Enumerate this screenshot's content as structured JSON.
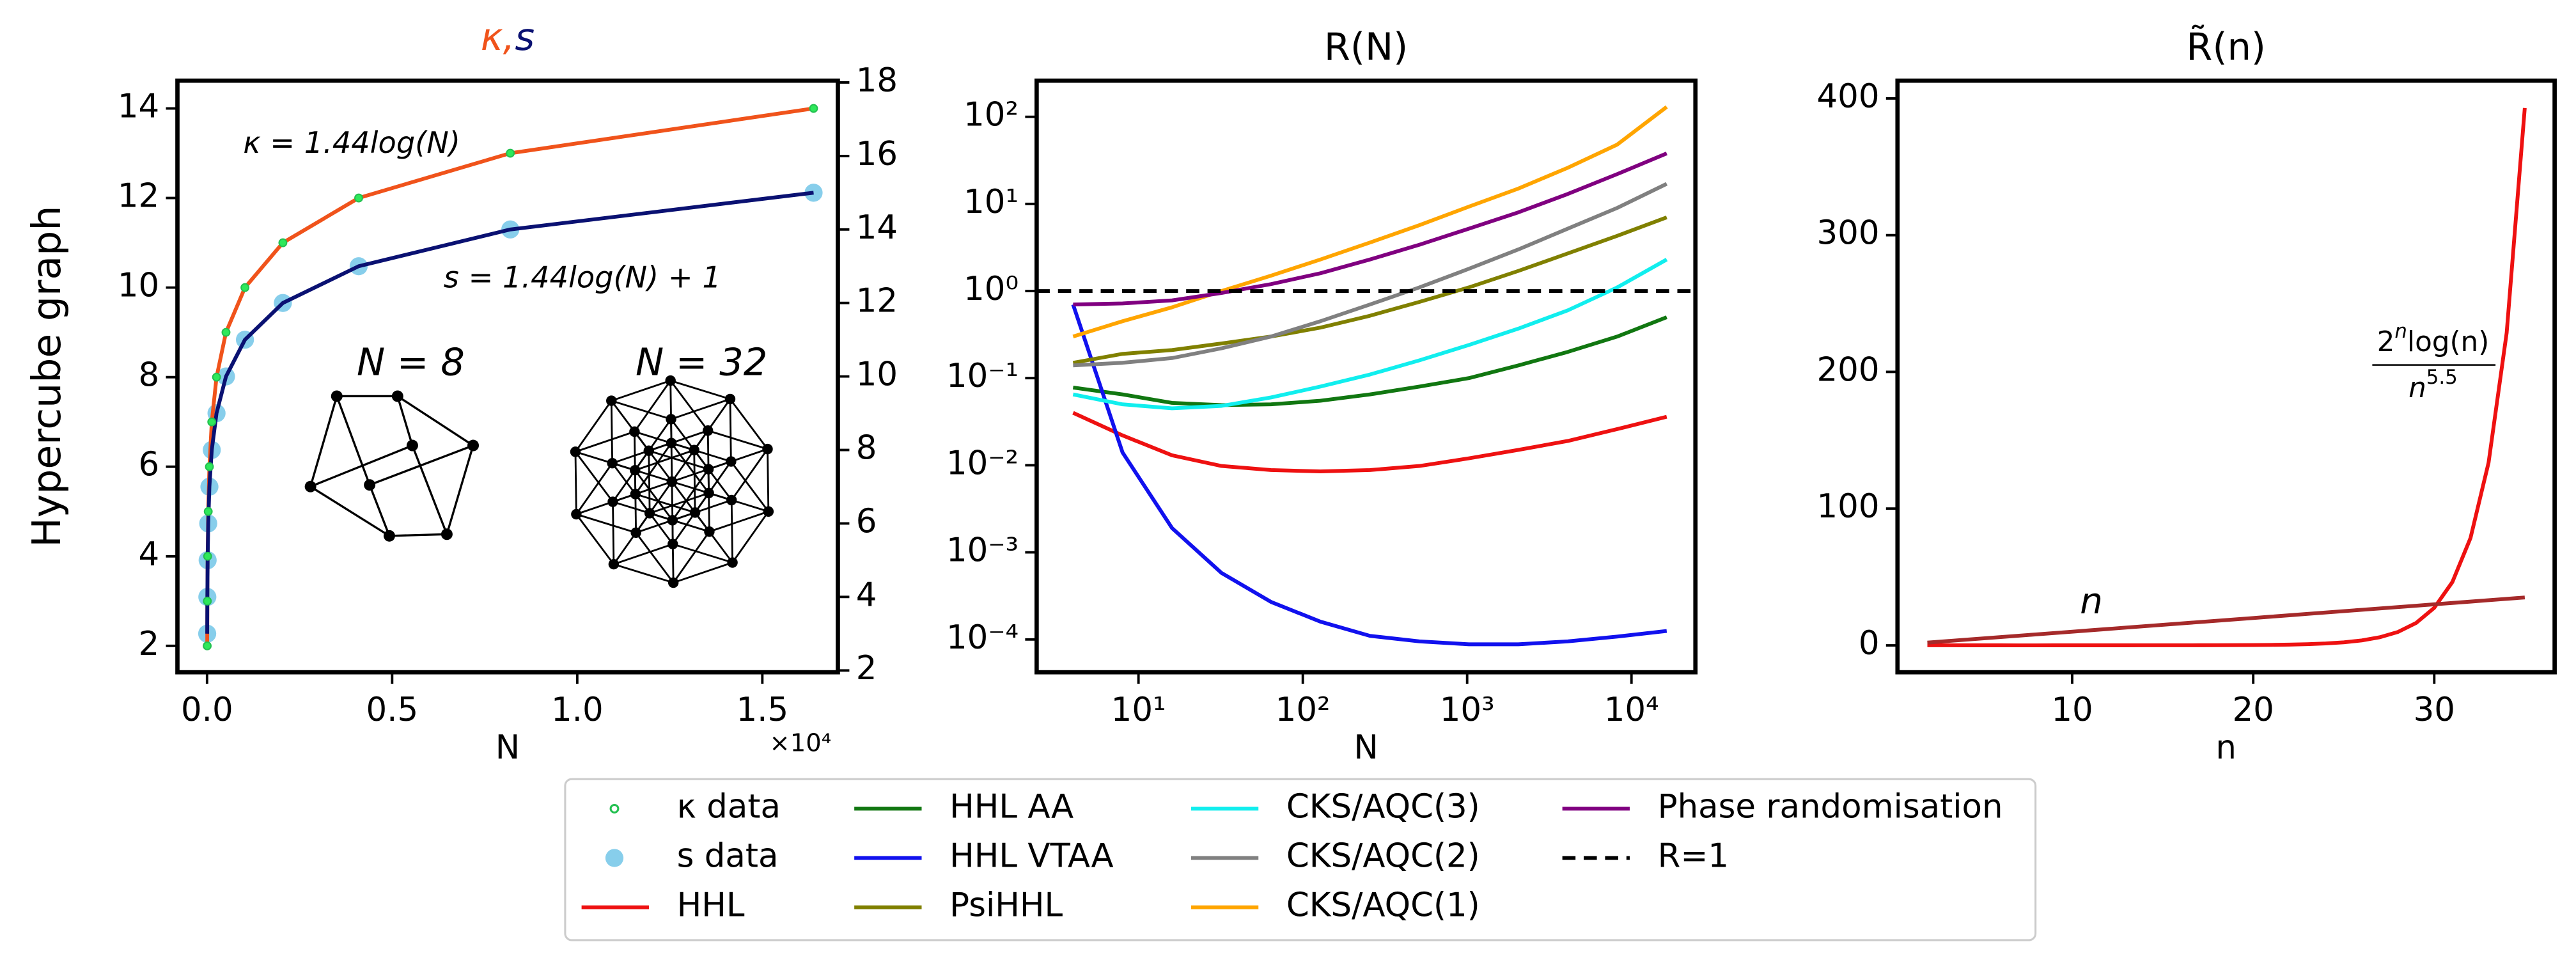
{
  "chart_data": [
    {
      "type": "line",
      "title_parts": [
        {
          "text": "κ",
          "color": "#f0531b"
        },
        {
          "text": ",",
          "color": "#f0531b"
        },
        {
          "text": "s",
          "color": "#0a1172"
        }
      ],
      "xlabel": "N",
      "ylabel": "Hypercube graph",
      "x_offset_label": "×10⁴",
      "x": [
        4,
        8,
        16,
        32,
        64,
        128,
        256,
        512,
        1024,
        2048,
        4096,
        8192,
        16384
      ],
      "series": [
        {
          "name": "κ data",
          "color": "#2ee85a",
          "marker": "small-circle",
          "line_color": "#f0531b",
          "values": [
            2,
            3,
            4,
            5,
            6,
            7,
            8,
            9,
            10,
            11,
            12,
            13,
            14
          ]
        },
        {
          "name": "s data",
          "color": "#87ceeb",
          "marker": "circle",
          "line_color": "#0a1172",
          "axis": "y2",
          "values": [
            3,
            4,
            5,
            6,
            7,
            8,
            9,
            10,
            11,
            12,
            13,
            14,
            15
          ]
        }
      ],
      "xlim": [
        -800,
        17040
      ],
      "xticks": [
        {
          "value": 0,
          "label": "0.0"
        },
        {
          "value": 5000,
          "label": "0.5"
        },
        {
          "value": 10000,
          "label": "1.0"
        },
        {
          "value": 15000,
          "label": "1.5"
        }
      ],
      "ylim": [
        1.41,
        14.62
      ],
      "yticks": [
        2,
        4,
        6,
        8,
        10,
        12,
        14
      ],
      "ytick_color": "#f0531b",
      "y2lim": [
        1.95,
        18.05
      ],
      "y2ticks": [
        2,
        4,
        6,
        8,
        10,
        12,
        14,
        16,
        18
      ],
      "y2tick_color": "#0a1172",
      "annotations": [
        {
          "text": "κ = 1.44log(N)",
          "color": "#f0531b"
        },
        {
          "text": "s = 1.44log(N) + 1",
          "color": "#0a1172"
        },
        {
          "text": "N = 8"
        },
        {
          "text": "N = 32"
        }
      ]
    },
    {
      "type": "line",
      "title": "R(N)",
      "xlabel": "N",
      "xlog": true,
      "ylog": true,
      "x": [
        4,
        8,
        16,
        32,
        64,
        128,
        256,
        512,
        1024,
        2048,
        4096,
        8192,
        16384
      ],
      "series": [
        {
          "name": "HHL",
          "color": "#ee1111",
          "values": [
            0.04,
            0.022,
            0.013,
            0.0098,
            0.0088,
            0.0085,
            0.0088,
            0.0098,
            0.012,
            0.015,
            0.019,
            0.026,
            0.036
          ]
        },
        {
          "name": "HHL AA",
          "color": "#117711",
          "values": [
            0.078,
            0.065,
            0.052,
            0.049,
            0.05,
            0.055,
            0.065,
            0.08,
            0.1,
            0.14,
            0.2,
            0.3,
            0.5
          ]
        },
        {
          "name": "HHL VTAA",
          "color": "#1111ee",
          "values": [
            0.7,
            0.014,
            0.0019,
            0.00058,
            0.00027,
            0.00016,
            0.00011,
            9.5e-05,
            8.8e-05,
            8.8e-05,
            9.5e-05,
            0.000108,
            0.000125
          ]
        },
        {
          "name": "PsiHHL",
          "color": "#808000",
          "values": [
            0.15,
            0.19,
            0.21,
            0.25,
            0.3,
            0.38,
            0.52,
            0.75,
            1.1,
            1.7,
            2.7,
            4.3,
            7
          ]
        },
        {
          "name": "CKS/AQC(3)",
          "color": "#11eeee",
          "values": [
            0.065,
            0.05,
            0.045,
            0.048,
            0.06,
            0.08,
            0.11,
            0.16,
            0.24,
            0.37,
            0.6,
            1.1,
            2.3
          ]
        },
        {
          "name": "CKS/AQC(2)",
          "color": "#808080",
          "values": [
            0.14,
            0.15,
            0.17,
            0.22,
            0.3,
            0.45,
            0.7,
            1.1,
            1.8,
            3,
            5.2,
            9,
            17
          ]
        },
        {
          "name": "CKS/AQC(1)",
          "color": "#ffa500",
          "values": [
            0.3,
            0.45,
            0.65,
            1.0,
            1.5,
            2.3,
            3.6,
            5.7,
            9.3,
            15,
            26,
            48,
            130
          ]
        },
        {
          "name": "Phase randomisation",
          "color": "#800080",
          "values": [
            0.7,
            0.72,
            0.78,
            0.95,
            1.2,
            1.6,
            2.3,
            3.4,
            5.2,
            8,
            13,
            22,
            38
          ]
        }
      ],
      "hline": {
        "name": "R=1",
        "value": 1,
        "color": "#000000",
        "dashed": true
      },
      "xlim": [
        2.4,
        24500
      ],
      "xticks": [
        {
          "value": 10,
          "label": "10¹"
        },
        {
          "value": 100,
          "label": "10²"
        },
        {
          "value": 1000,
          "label": "10³"
        },
        {
          "value": 10000,
          "label": "10⁴"
        }
      ],
      "ylim": [
        4.2e-05,
        260
      ],
      "yticks": [
        {
          "value": 0.0001,
          "label": "10⁻⁴"
        },
        {
          "value": 0.001,
          "label": "10⁻³"
        },
        {
          "value": 0.01,
          "label": "10⁻²"
        },
        {
          "value": 0.1,
          "label": "10⁻¹"
        },
        {
          "value": 1,
          "label": "10⁰"
        },
        {
          "value": 10,
          "label": "10¹"
        },
        {
          "value": 100,
          "label": "10²"
        }
      ]
    },
    {
      "type": "line",
      "title": "R̃(n)",
      "xlabel": "n",
      "x": [
        2,
        3,
        4,
        5,
        6,
        7,
        8,
        9,
        10,
        11,
        12,
        13,
        14,
        15,
        16,
        17,
        18,
        19,
        20,
        21,
        22,
        23,
        24,
        25,
        26,
        27,
        28,
        29,
        30,
        31,
        32,
        33,
        34,
        35
      ],
      "series": [
        {
          "color": "#ee1111",
          "values": [
            0.0613,
            0.0209,
            0.0108,
            0.0074,
            0.006,
            0.0056,
            0.0057,
            0.0064,
            0.0075,
            0.0092,
            0.0118,
            0.0157,
            0.0215,
            0.0302,
            0.0433,
            0.0634,
            0.0945,
            0.143,
            0.2195,
            0.341,
            0.536,
            0.852,
            1.367,
            2.212,
            3.609,
            5.933,
            9.822,
            16.37,
            27.44,
            46.26,
            78.42,
            133.6,
            228.6,
            393
          ]
        },
        {
          "color": "#a52a2a",
          "values": [
            2,
            3,
            4,
            5,
            6,
            7,
            8,
            9,
            10,
            11,
            12,
            13,
            14,
            15,
            16,
            17,
            18,
            19,
            20,
            21,
            22,
            23,
            24,
            25,
            26,
            27,
            28,
            29,
            30,
            31,
            32,
            33,
            34,
            35
          ]
        }
      ],
      "xlim": [
        0.35,
        36.65
      ],
      "xticks": [
        10,
        20,
        30
      ],
      "ylim": [
        -19.7,
        413
      ],
      "yticks": [
        0,
        100,
        200,
        300,
        400
      ],
      "annotations": [
        {
          "text": "n"
        },
        {
          "numerator": {
            "base": "2",
            "exp": "n",
            "rest": "log(n)"
          },
          "denominator": {
            "base": "n",
            "exp": "5.5"
          }
        }
      ]
    }
  ]
}
